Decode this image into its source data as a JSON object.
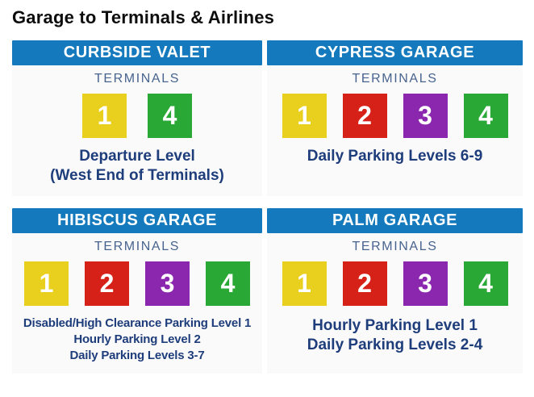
{
  "page_title": "Garage to Terminals & Airlines",
  "colors": {
    "header_bar": "#147abd",
    "terminal_1_yellow": "#e9d01e",
    "terminal_2_red": "#d62118",
    "terminal_3_purple": "#8b27ae",
    "terminal_4_green": "#2aa835",
    "body_text_navy": "#1e3d7b",
    "terminals_label_blue": "#47648f"
  },
  "panels": [
    {
      "title": "CURBSIDE VALET",
      "terminals_label": "TERMINALS",
      "terminals": [
        {
          "label": "1",
          "color": "#e9d01e"
        },
        {
          "label": "4",
          "color": "#2aa835"
        }
      ],
      "lines": [
        "Departure Level",
        "(West End of Terminals)"
      ]
    },
    {
      "title": "CYPRESS GARAGE",
      "terminals_label": "TERMINALS",
      "terminals": [
        {
          "label": "1",
          "color": "#e9d01e"
        },
        {
          "label": "2",
          "color": "#d62118"
        },
        {
          "label": "3",
          "color": "#8b27ae"
        },
        {
          "label": "4",
          "color": "#2aa835"
        }
      ],
      "lines": [
        "Daily Parking Levels 6-9"
      ]
    },
    {
      "title": "HIBISCUS GARAGE",
      "terminals_label": "TERMINALS",
      "terminals": [
        {
          "label": "1",
          "color": "#e9d01e"
        },
        {
          "label": "2",
          "color": "#d62118"
        },
        {
          "label": "3",
          "color": "#8b27ae"
        },
        {
          "label": "4",
          "color": "#2aa835"
        }
      ],
      "lines": [
        "Disabled/High Clearance Parking Level 1",
        "Hourly Parking Level 2",
        "Daily Parking Levels 3-7"
      ]
    },
    {
      "title": "PALM GARAGE",
      "terminals_label": "TERMINALS",
      "terminals": [
        {
          "label": "1",
          "color": "#e9d01e"
        },
        {
          "label": "2",
          "color": "#d62118"
        },
        {
          "label": "3",
          "color": "#8b27ae"
        },
        {
          "label": "4",
          "color": "#2aa835"
        }
      ],
      "lines": [
        "Hourly Parking Level 1",
        "Daily Parking Levels 2-4"
      ]
    }
  ]
}
